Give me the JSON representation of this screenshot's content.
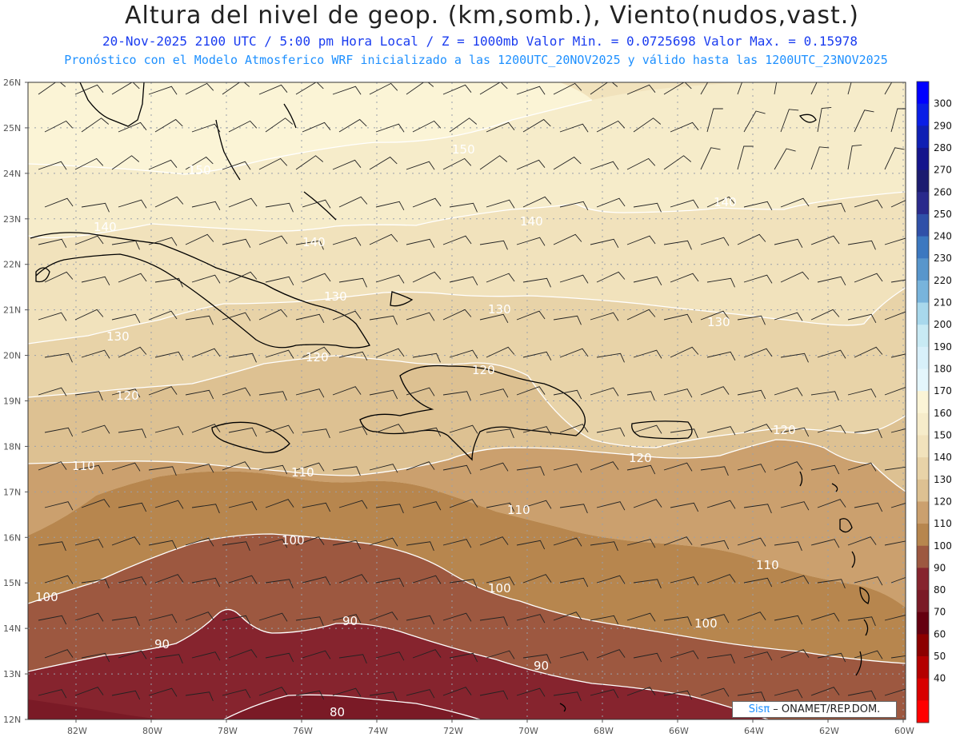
{
  "header": {
    "title": "Altura del nivel de geop. (km,somb.), Viento(nudos,vast.)",
    "subtitle1": "20-Nov-2025  2100 UTC / 5:00 pm Hora Local / Z = 1000mb  Valor Min. = 0.0725698  Valor Max. = 0.15978",
    "subtitle2": "Pronóstico con el Modelo Atmosferico WRF inicializado a las 1200UTC_20NOV2025 y válido hasta las  1200UTC_23NOV2025"
  },
  "axes": {
    "lat_labels": [
      "26N",
      "25N",
      "24N",
      "23N",
      "22N",
      "21N",
      "20N",
      "19N",
      "18N",
      "17N",
      "16N",
      "15N",
      "14N",
      "13N",
      "12N"
    ],
    "lon_labels": [
      "82W",
      "80W",
      "78W",
      "76W",
      "74W",
      "72W",
      "70W",
      "68W",
      "66W",
      "64W",
      "62W",
      "60W"
    ]
  },
  "contour_labels": [
    {
      "text": "150",
      "group": "150a"
    },
    {
      "text": "150",
      "group": "150b"
    },
    {
      "text": "140",
      "group": "140a"
    },
    {
      "text": "140",
      "group": "140b"
    },
    {
      "text": "140",
      "group": "140c"
    },
    {
      "text": "140",
      "group": "140d"
    },
    {
      "text": "130",
      "group": "130a"
    },
    {
      "text": "130",
      "group": "130b"
    },
    {
      "text": "130",
      "group": "130c"
    },
    {
      "text": "130",
      "group": "130d"
    },
    {
      "text": "120",
      "group": "120a"
    },
    {
      "text": "120",
      "group": "120b"
    },
    {
      "text": "120",
      "group": "120c"
    },
    {
      "text": "120",
      "group": "120d"
    },
    {
      "text": "120",
      "group": "120e"
    },
    {
      "text": "110",
      "group": "110a"
    },
    {
      "text": "110",
      "group": "110b"
    },
    {
      "text": "110",
      "group": "110c"
    },
    {
      "text": "110",
      "group": "110d"
    },
    {
      "text": "100",
      "group": "100a"
    },
    {
      "text": "100",
      "group": "100b"
    },
    {
      "text": "100",
      "group": "100c"
    },
    {
      "text": "100",
      "group": "100d"
    },
    {
      "text": "90",
      "group": "90a"
    },
    {
      "text": "90",
      "group": "90b"
    },
    {
      "text": "90",
      "group": "90c"
    },
    {
      "text": "80",
      "group": "80a"
    }
  ],
  "colorbar": {
    "labels": [
      "300",
      "290",
      "280",
      "270",
      "260",
      "250",
      "240",
      "230",
      "220",
      "210",
      "200",
      "190",
      "180",
      "170",
      "160",
      "150",
      "140",
      "130",
      "120",
      "110",
      "100",
      "90",
      "80",
      "70",
      "60",
      "50",
      "40"
    ],
    "colors": [
      "#0000ff",
      "#0a1ee6",
      "#0f1fb4",
      "#14148c",
      "#1c1c70",
      "#2a2a8c",
      "#3050a8",
      "#3c78c0",
      "#5896cc",
      "#78b4dc",
      "#a8d8ec",
      "#c8eaf4",
      "#d8f0fa",
      "#e4f6fc",
      "#fbf4d6",
      "#f6ecca",
      "#f1e2bc",
      "#e8d3a8",
      "#ddc192",
      "#cba06e",
      "#b7864e",
      "#9d5840",
      "#86242e",
      "#7a1a26",
      "#650010",
      "#8c0000",
      "#b40000",
      "#d80000",
      "#ff0000"
    ]
  },
  "wind": {
    "units": "nudos",
    "style": "barbs"
  },
  "credit": {
    "logo": "Sisπ",
    "text": " – ONAMET/REP.DOM."
  }
}
